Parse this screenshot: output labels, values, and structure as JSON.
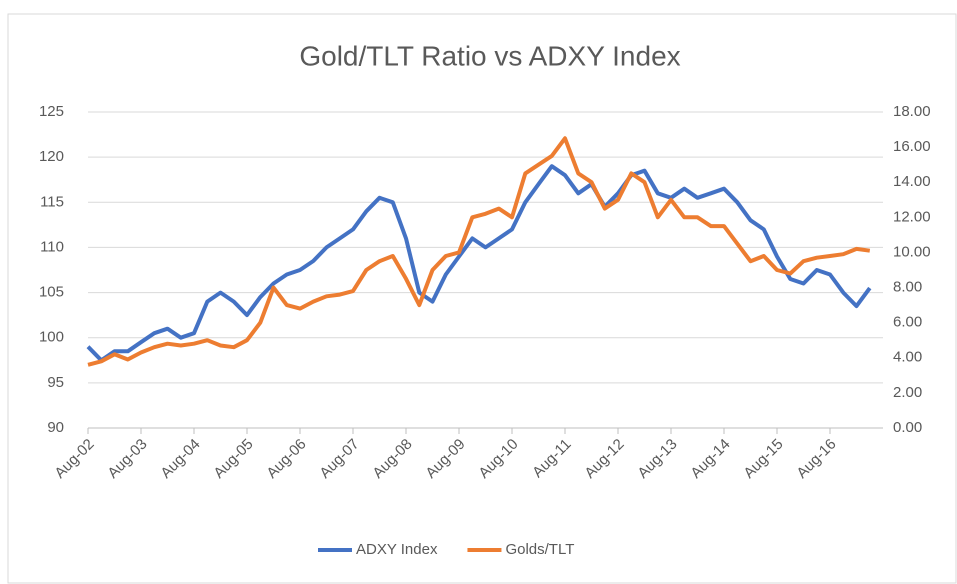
{
  "chart_data": {
    "type": "line",
    "title": "Gold/TLT Ratio vs ADXY Index",
    "categories": [
      "Aug-02",
      null,
      null,
      null,
      "Aug-03",
      null,
      null,
      null,
      "Aug-04",
      null,
      null,
      null,
      "Aug-05",
      null,
      null,
      null,
      "Aug-06",
      null,
      null,
      null,
      "Aug-07",
      null,
      null,
      null,
      "Aug-08",
      null,
      null,
      null,
      "Aug-09",
      null,
      null,
      null,
      "Aug-10",
      null,
      null,
      null,
      "Aug-11",
      null,
      null,
      null,
      "Aug-12",
      null,
      null,
      null,
      "Aug-13",
      null,
      null,
      null,
      "Aug-14",
      null,
      null,
      null,
      "Aug-15",
      null,
      null,
      null,
      "Aug-16",
      null,
      null,
      null
    ],
    "series": [
      {
        "name": "ADXY Index",
        "color": "#4472c4",
        "axis": "y",
        "values": [
          99,
          97.5,
          98.5,
          98.5,
          99.5,
          100.5,
          101,
          100,
          100.5,
          104,
          105,
          104,
          102.5,
          104.5,
          106,
          107,
          107.5,
          108.5,
          110,
          111,
          112,
          114,
          115.5,
          115,
          111,
          105,
          104,
          107,
          109,
          111,
          110,
          111,
          112,
          115,
          117,
          119,
          118,
          116,
          117,
          114.5,
          116,
          118,
          118.5,
          116,
          115.5,
          116.5,
          115.5,
          116,
          116.5,
          115,
          113,
          112,
          109,
          106.5,
          106,
          107.5,
          107,
          105,
          103.5,
          105.5
        ]
      },
      {
        "name": "Golds/TLT",
        "color": "#ed7d31",
        "axis": "y2",
        "values": [
          3.6,
          3.8,
          4.2,
          3.9,
          4.3,
          4.6,
          4.8,
          4.7,
          4.8,
          5.0,
          4.7,
          4.6,
          5.0,
          6.0,
          8.0,
          7.0,
          6.8,
          7.2,
          7.5,
          7.6,
          7.8,
          9.0,
          9.5,
          9.8,
          8.5,
          7.0,
          9.0,
          9.8,
          10.0,
          12.0,
          12.2,
          12.5,
          12.0,
          14.5,
          15.0,
          15.5,
          16.5,
          14.5,
          14.0,
          12.5,
          13.0,
          14.5,
          14.0,
          12.0,
          13.0,
          12.0,
          12.0,
          11.5,
          11.5,
          10.5,
          9.5,
          9.8,
          9.0,
          8.8,
          9.5,
          9.7,
          9.8,
          9.9,
          10.2,
          10.1
        ]
      }
    ],
    "ylim": [
      90,
      125
    ],
    "yticks": [
      90,
      95,
      100,
      105,
      110,
      115,
      120,
      125
    ],
    "y2lim": [
      0,
      18
    ],
    "y2ticks": [
      {
        "value": 0,
        "label": "0.00"
      },
      {
        "value": 2,
        "label": "2.00"
      },
      {
        "value": 4,
        "label": "4.00"
      },
      {
        "value": 6,
        "label": "6.00"
      },
      {
        "value": 8,
        "label": "8.00"
      },
      {
        "value": 10,
        "label": "10.00"
      },
      {
        "value": 12,
        "label": "12.00"
      },
      {
        "value": 14,
        "label": "14.00"
      },
      {
        "value": 16,
        "label": "16.00"
      },
      {
        "value": 18,
        "label": "18.00"
      }
    ],
    "grid": true,
    "legend": "bottom"
  }
}
